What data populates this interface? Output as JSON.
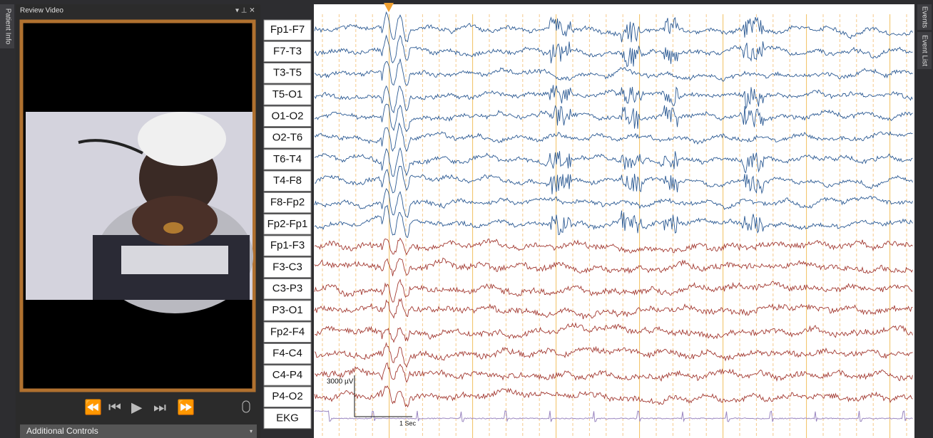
{
  "sidebar_left": {
    "tab": "Patient Info"
  },
  "video_panel": {
    "title": "Review Video",
    "footer": "Additional Controls"
  },
  "montage": {
    "channels": [
      "Fp1-F7",
      "F7-T3",
      "T3-T5",
      "T5-O1",
      "O1-O2",
      "O2-T6",
      "T6-T4",
      "T4-F8",
      "F8-Fp2",
      "Fp2-Fp1",
      "Fp1-F3",
      "F3-C3",
      "C3-P3",
      "P3-O1",
      "Fp2-F4",
      "F4-C4",
      "C4-P4",
      "P4-O2",
      "EKG"
    ]
  },
  "scale": {
    "amplitude": "3000 µV",
    "time": "1 Sec"
  },
  "sidebar_right": {
    "tabs": [
      "Events",
      "Event List"
    ]
  }
}
